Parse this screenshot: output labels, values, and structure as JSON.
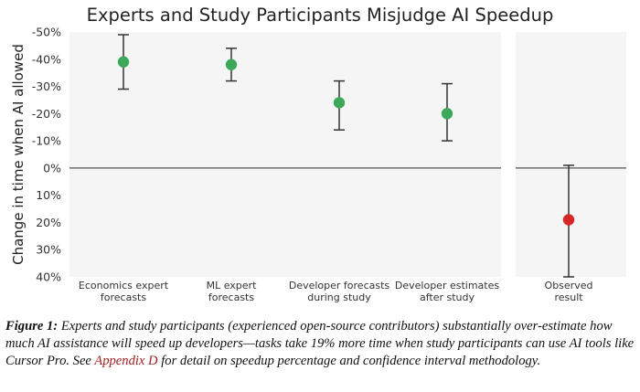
{
  "chart_data": {
    "type": "scatter",
    "title": "Experts and Study Participants Misjudge AI Speedup",
    "ylabel": "Change in time when AI allowed",
    "yticks": [
      "-50%",
      "-40%",
      "-30%",
      "-20%",
      "-10%",
      "0%",
      "10%",
      "20%",
      "30%",
      "40%"
    ],
    "ylim": [
      -50,
      40
    ],
    "y_inverted": true,
    "grid": false,
    "panels": [
      {
        "name": "forecasts",
        "points": [
          {
            "category": "Economics expert forecasts",
            "category_lines": [
              "Economics expert",
              "forecasts"
            ],
            "value": -39,
            "low": -49,
            "high": -29,
            "color": "#3da85a"
          },
          {
            "category": "ML expert forecasts",
            "category_lines": [
              "ML expert",
              "forecasts"
            ],
            "value": -38,
            "low": -44,
            "high": -32,
            "color": "#3da85a"
          },
          {
            "category": "Developer forecasts during study",
            "category_lines": [
              "Developer forecasts",
              "during study"
            ],
            "value": -24,
            "low": -32,
            "high": -14,
            "color": "#3da85a"
          },
          {
            "category": "Developer estimates after study",
            "category_lines": [
              "Developer estimates",
              "after study"
            ],
            "value": -20,
            "low": -31,
            "high": -10,
            "color": "#3da85a"
          }
        ]
      },
      {
        "name": "observed",
        "points": [
          {
            "category": "Observed result",
            "category_lines": [
              "Observed",
              "result"
            ],
            "value": 19,
            "low": -1,
            "high": 40,
            "color": "#d62728"
          }
        ]
      }
    ]
  },
  "caption": {
    "label": "Figure 1:",
    "text_before": " Experts and study participants (experienced open-source contributors) substantially over-estimate how much AI assistance will speed up developers—tasks take 19% more time when study participants can use AI tools like Cursor Pro. See ",
    "link": "Appendix D",
    "text_after": " for detail on speedup percentage and confidence interval methodology."
  }
}
